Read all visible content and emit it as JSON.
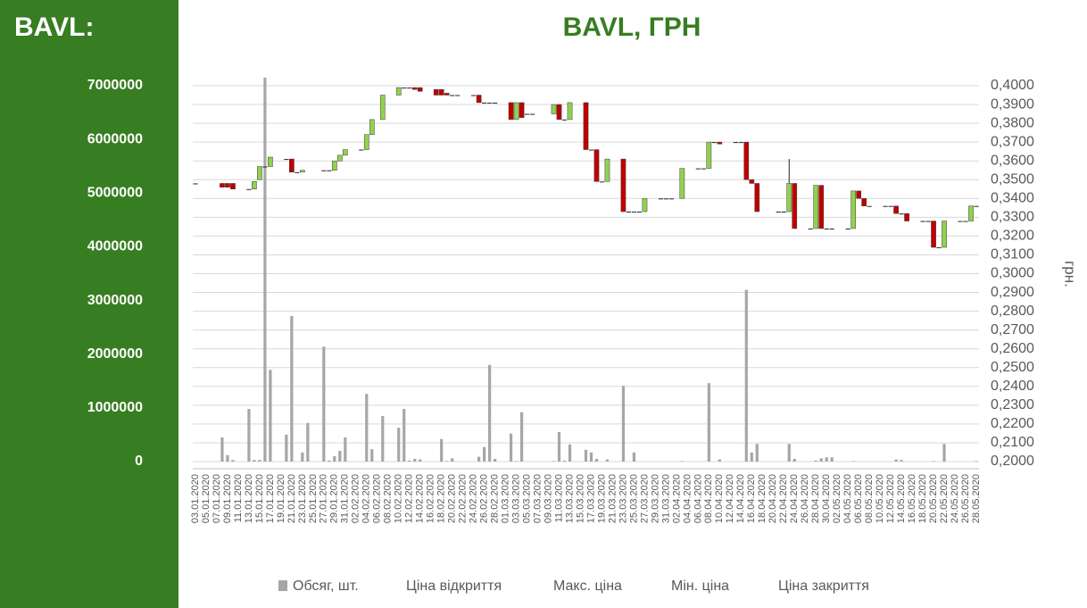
{
  "chart_data": {
    "type": "candlestick",
    "title": "BAVL, ГРН",
    "sidebar_title": "BAVL:",
    "y2label": "грн.",
    "up_color": "#92d050",
    "down_color": "#c00000",
    "grid": true,
    "categories": [
      "03.01.2020",
      null,
      "05.01.2020",
      null,
      "07.01.2020",
      null,
      "09.01.2020",
      null,
      "11.01.2020",
      null,
      "13.01.2020",
      null,
      "15.01.2020",
      null,
      "17.01.2020",
      null,
      "19.01.2020",
      null,
      "21.01.2020",
      null,
      "23.01.2020",
      null,
      "25.01.2020",
      null,
      "27.01.2020",
      null,
      "29.01.2020",
      null,
      "31.01.2020",
      null,
      "02.02.2020",
      null,
      "04.02.2020",
      null,
      "06.02.2020",
      null,
      "08.02.2020",
      null,
      "10.02.2020",
      null,
      "12.02.2020",
      null,
      "14.02.2020",
      null,
      "16.02.2020",
      null,
      "18.02.2020",
      null,
      "20.02.2020",
      null,
      "22.02.2020",
      null,
      "24.02.2020",
      null,
      "26.02.2020",
      null,
      "28.02.2020",
      null,
      "01.03.2020",
      null,
      "03.03.2020",
      null,
      "05.03.2020",
      null,
      "07.03.2020",
      null,
      "09.03.2020",
      null,
      "11.03.2020",
      null,
      "13.03.2020",
      null,
      "15.03.2020",
      null,
      "17.03.2020",
      null,
      "19.03.2020",
      null,
      "21.03.2020",
      null,
      "23.03.2020",
      null,
      "25.03.2020",
      null,
      "27.03.2020",
      null,
      "29.03.2020",
      null,
      "31.03.2020",
      null,
      "02.04.2020",
      null,
      "04.04.2020",
      null,
      "06.04.2020",
      null,
      "08.04.2020",
      null,
      "10.04.2020",
      null,
      "12.04.2020",
      null,
      "14.04.2020",
      null,
      "16.04.2020",
      null,
      "18.04.2020",
      null,
      "20.04.2020",
      null,
      "22.04.2020",
      null,
      "24.04.2020",
      null,
      "26.04.2020",
      null,
      "28.04.2020",
      null,
      "30.04.2020",
      null,
      "02.05.2020",
      null,
      "04.05.2020",
      null,
      "06.05.2020",
      null,
      "08.05.2020",
      null,
      "10.05.2020",
      null,
      "12.05.2020",
      null,
      "14.05.2020",
      null,
      "16.05.2020",
      null,
      "18.05.2020",
      null,
      "20.05.2020",
      null,
      "22.05.2020",
      null,
      "24.05.2020",
      null,
      "26.05.2020",
      null,
      "28.05.2020"
    ],
    "ylim": [
      0,
      7200000
    ],
    "yticks": [
      0,
      1000000,
      2000000,
      3000000,
      4000000,
      5000000,
      6000000,
      7000000
    ],
    "y2lim": [
      0.2,
      0.4057
    ],
    "y2ticks": [
      {
        "value": 0.2,
        "label": "0,2000"
      },
      {
        "value": 0.21,
        "label": "0,2100"
      },
      {
        "value": 0.22,
        "label": "0,2200"
      },
      {
        "value": 0.23,
        "label": "0,2300"
      },
      {
        "value": 0.24,
        "label": "0,2400"
      },
      {
        "value": 0.25,
        "label": "0,2500"
      },
      {
        "value": 0.26,
        "label": "0,2600"
      },
      {
        "value": 0.27,
        "label": "0,2700"
      },
      {
        "value": 0.28,
        "label": "0,2800"
      },
      {
        "value": 0.29,
        "label": "0,2900"
      },
      {
        "value": 0.3,
        "label": "0,3000"
      },
      {
        "value": 0.31,
        "label": "0,3100"
      },
      {
        "value": 0.32,
        "label": "0,3200"
      },
      {
        "value": 0.33,
        "label": "0,3300"
      },
      {
        "value": 0.34,
        "label": "0,3400"
      },
      {
        "value": 0.35,
        "label": "0,3500"
      },
      {
        "value": 0.36,
        "label": "0,3600"
      },
      {
        "value": 0.37,
        "label": "0,3700"
      },
      {
        "value": 0.38,
        "label": "0,3800"
      },
      {
        "value": 0.39,
        "label": "0,3900"
      },
      {
        "value": 0.4,
        "label": "0,4000"
      }
    ],
    "series": [
      {
        "name": "Обсяг, шт.",
        "color": "#a6a6a6",
        "values": [
          null,
          null,
          null,
          null,
          null,
          450000,
          120000,
          30000,
          null,
          null,
          980000,
          30000,
          30000,
          7150000,
          1710000,
          null,
          null,
          500000,
          2710000,
          null,
          170000,
          720000,
          null,
          null,
          2140000,
          20000,
          100000,
          200000,
          450000,
          null,
          null,
          null,
          1260000,
          230000,
          null,
          850000,
          null,
          null,
          630000,
          980000,
          20000,
          50000,
          40000,
          null,
          null,
          null,
          420000,
          10000,
          60000,
          null,
          null,
          null,
          null,
          90000,
          270000,
          1800000,
          50000,
          null,
          null,
          520000,
          10000,
          920000,
          null,
          null,
          null,
          null,
          null,
          10000,
          550000,
          20000,
          320000,
          null,
          null,
          220000,
          170000,
          50000,
          null,
          40000,
          null,
          null,
          1410000,
          null,
          170000,
          null,
          null,
          null,
          null,
          null,
          null,
          null,
          null,
          10000,
          null,
          null,
          null,
          null,
          1460000,
          null,
          40000,
          null,
          null,
          null,
          null,
          3200000,
          170000,
          330000,
          null,
          null,
          null,
          null,
          null,
          330000,
          50000,
          null,
          null,
          null,
          20000,
          60000,
          80000,
          80000,
          null,
          null,
          null,
          10000,
          null,
          null,
          null,
          null,
          null,
          null,
          null,
          40000,
          30000,
          null,
          null,
          null,
          null,
          null,
          10000,
          null,
          330000,
          null,
          null,
          null,
          null,
          null,
          10000
        ]
      },
      {
        "name": "Ціна відкриття",
        "axis": "y2",
        "values": [
          0.348,
          null,
          null,
          null,
          null,
          0.348,
          0.348,
          0.348,
          null,
          null,
          0.345,
          0.345,
          0.35,
          0.357,
          0.357,
          null,
          null,
          0.361,
          0.361,
          0.354,
          0.354,
          null,
          null,
          null,
          0.355,
          0.355,
          0.355,
          0.36,
          0.363,
          null,
          null,
          0.366,
          0.366,
          0.374,
          null,
          0.382,
          null,
          null,
          0.395,
          0.399,
          0.399,
          0.399,
          0.399,
          null,
          null,
          0.398,
          0.398,
          0.396,
          0.395,
          0.395,
          null,
          null,
          0.395,
          0.395,
          0.391,
          0.391,
          0.391,
          null,
          null,
          0.391,
          0.382,
          0.391,
          0.385,
          0.385,
          null,
          null,
          null,
          0.385,
          0.39,
          0.382,
          0.382,
          null,
          null,
          0.391,
          0.366,
          0.366,
          0.349,
          0.349,
          null,
          null,
          0.361,
          0.333,
          0.333,
          0.333,
          0.333,
          null,
          null,
          0.34,
          0.34,
          0.34,
          null,
          0.34,
          null,
          null,
          0.356,
          0.356,
          0.356,
          0.37,
          0.37,
          null,
          null,
          0.37,
          0.37,
          0.37,
          0.35,
          0.348,
          null,
          null,
          null,
          0.333,
          0.333,
          0.333,
          0.348,
          null,
          null,
          0.324,
          0.324,
          0.347,
          0.324,
          0.324,
          null,
          null,
          0.324,
          0.324,
          0.344,
          0.34,
          0.336,
          null,
          null,
          0.336,
          0.336,
          0.336,
          0.332,
          0.332,
          null,
          null,
          0.328,
          0.328,
          0.328,
          0.314,
          0.314,
          null,
          null,
          0.328,
          0.328,
          0.328,
          0.336
        ]
      },
      {
        "name": "Макс. ціна",
        "axis": "y2",
        "values": [
          0.348,
          null,
          null,
          null,
          null,
          0.348,
          0.348,
          0.348,
          null,
          null,
          0.345,
          0.349,
          0.357,
          0.357,
          0.362,
          null,
          null,
          0.361,
          0.361,
          0.354,
          0.355,
          null,
          null,
          null,
          0.355,
          0.355,
          0.36,
          0.363,
          0.366,
          null,
          null,
          0.366,
          0.374,
          0.382,
          null,
          0.395,
          null,
          null,
          0.399,
          0.399,
          0.399,
          0.399,
          0.399,
          null,
          null,
          0.398,
          0.398,
          0.396,
          0.395,
          0.395,
          null,
          null,
          0.395,
          0.395,
          0.391,
          0.391,
          0.391,
          null,
          null,
          0.391,
          0.391,
          0.391,
          0.385,
          0.385,
          null,
          null,
          null,
          0.39,
          0.39,
          0.382,
          0.391,
          null,
          null,
          0.391,
          0.366,
          0.366,
          0.349,
          0.361,
          null,
          null,
          0.361,
          0.333,
          0.333,
          0.333,
          0.34,
          null,
          null,
          0.34,
          0.34,
          0.34,
          null,
          0.356,
          null,
          null,
          0.356,
          0.356,
          0.37,
          0.37,
          0.37,
          null,
          null,
          0.37,
          0.37,
          0.37,
          0.35,
          0.348,
          null,
          null,
          null,
          0.333,
          0.333,
          0.361,
          0.348,
          null,
          null,
          0.324,
          0.347,
          0.347,
          0.324,
          0.324,
          null,
          null,
          0.324,
          0.344,
          0.344,
          0.34,
          0.336,
          null,
          null,
          0.336,
          0.336,
          0.336,
          0.332,
          0.332,
          null,
          null,
          0.328,
          0.328,
          0.328,
          0.314,
          0.328,
          null,
          null,
          0.328,
          0.328,
          0.336,
          0.336
        ]
      },
      {
        "name": "Мін. ціна",
        "axis": "y2",
        "values": [
          0.348,
          null,
          null,
          null,
          null,
          0.346,
          0.346,
          0.345,
          null,
          null,
          0.345,
          0.345,
          0.35,
          0.357,
          0.357,
          null,
          null,
          0.361,
          0.354,
          0.354,
          0.354,
          null,
          null,
          null,
          0.355,
          0.355,
          0.355,
          0.36,
          0.363,
          null,
          null,
          0.366,
          0.366,
          0.374,
          null,
          0.382,
          null,
          null,
          0.395,
          0.399,
          0.399,
          0.398,
          0.397,
          null,
          null,
          0.395,
          0.395,
          0.395,
          0.395,
          0.395,
          null,
          null,
          0.395,
          0.391,
          0.391,
          0.391,
          0.391,
          null,
          null,
          0.382,
          0.382,
          0.383,
          0.385,
          0.385,
          null,
          null,
          null,
          0.385,
          0.382,
          0.382,
          0.382,
          null,
          null,
          0.366,
          0.366,
          0.349,
          0.349,
          0.349,
          null,
          null,
          0.333,
          0.333,
          0.333,
          0.333,
          0.333,
          null,
          null,
          0.34,
          0.34,
          0.34,
          null,
          0.34,
          null,
          null,
          0.356,
          0.356,
          0.356,
          0.37,
          0.369,
          null,
          null,
          0.37,
          0.37,
          0.35,
          0.348,
          0.333,
          null,
          null,
          null,
          0.333,
          0.333,
          0.333,
          0.324,
          null,
          null,
          0.324,
          0.324,
          0.324,
          0.324,
          0.324,
          null,
          null,
          0.324,
          0.324,
          0.34,
          0.336,
          0.336,
          null,
          null,
          0.336,
          0.336,
          0.332,
          0.332,
          0.328,
          null,
          null,
          0.328,
          0.328,
          0.314,
          0.314,
          0.314,
          null,
          null,
          0.328,
          0.328,
          0.328,
          0.336
        ]
      },
      {
        "name": "Ціна закриття",
        "axis": "y2",
        "values": [
          0.348,
          null,
          null,
          null,
          null,
          0.346,
          0.346,
          0.345,
          null,
          null,
          0.345,
          0.349,
          0.357,
          0.357,
          0.362,
          null,
          null,
          0.361,
          0.354,
          0.354,
          0.355,
          null,
          null,
          null,
          0.355,
          0.355,
          0.36,
          0.363,
          0.366,
          null,
          null,
          0.366,
          0.374,
          0.382,
          null,
          0.395,
          null,
          null,
          0.399,
          0.399,
          0.399,
          0.398,
          0.397,
          null,
          null,
          0.395,
          0.395,
          0.395,
          0.395,
          0.395,
          null,
          null,
          0.395,
          0.391,
          0.391,
          0.391,
          0.391,
          null,
          null,
          0.382,
          0.391,
          0.383,
          0.385,
          0.385,
          null,
          null,
          null,
          0.39,
          0.382,
          0.382,
          0.391,
          null,
          null,
          0.366,
          0.366,
          0.349,
          0.349,
          0.361,
          null,
          null,
          0.333,
          0.333,
          0.333,
          0.333,
          0.34,
          null,
          null,
          0.34,
          0.34,
          0.34,
          null,
          0.356,
          null,
          null,
          0.356,
          0.356,
          0.37,
          0.37,
          0.369,
          null,
          null,
          0.37,
          0.37,
          0.35,
          0.348,
          0.333,
          null,
          null,
          null,
          0.333,
          0.333,
          0.348,
          0.324,
          null,
          null,
          0.324,
          0.347,
          0.324,
          0.324,
          0.324,
          null,
          null,
          0.324,
          0.344,
          0.34,
          0.336,
          0.336,
          null,
          null,
          0.336,
          0.336,
          0.332,
          0.332,
          0.328,
          null,
          null,
          0.328,
          0.328,
          0.314,
          0.314,
          0.328,
          null,
          null,
          0.328,
          0.328,
          0.336,
          0.336
        ]
      }
    ]
  }
}
